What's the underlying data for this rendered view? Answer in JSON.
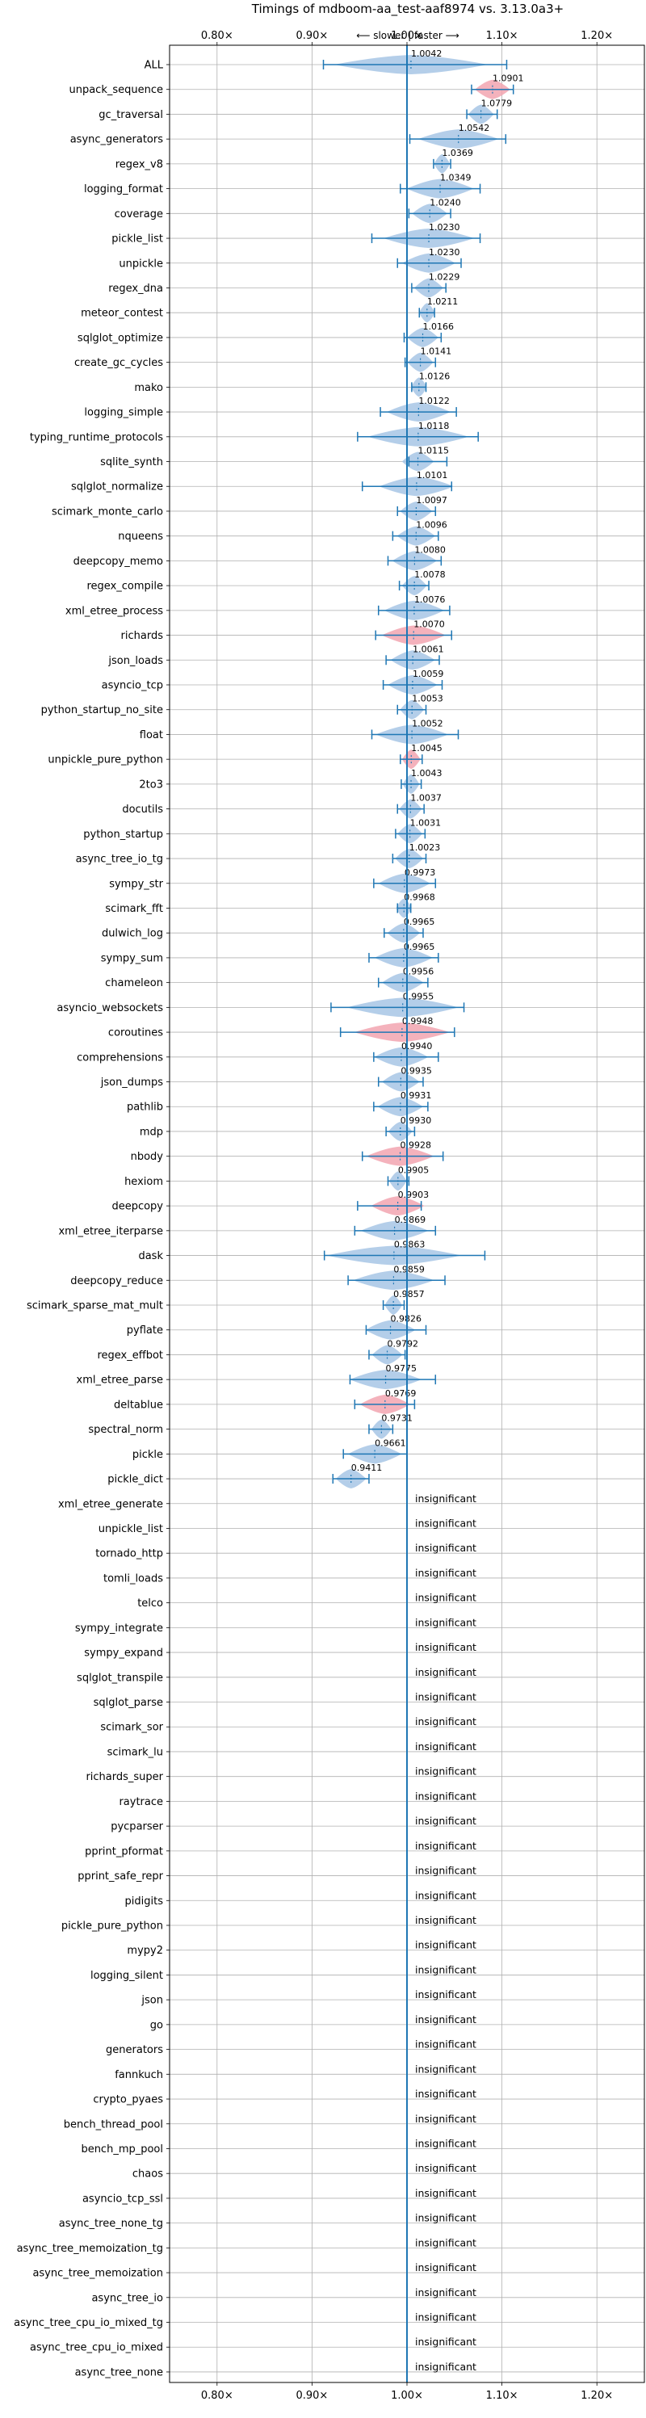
{
  "chart_data": {
    "type": "violin",
    "title": "Timings of mdboom-aa_test-aaf8974 vs. 3.13.0a3+",
    "direction_label": "⟵ slower | faster ⟶",
    "x_ticks": [
      "0.80×",
      "0.90×",
      "1.00×",
      "1.10×",
      "1.20×"
    ],
    "x_tick_values": [
      0.8,
      0.9,
      1.0,
      1.1,
      1.2
    ],
    "xlim": [
      0.75,
      1.25
    ],
    "reference_line": 1.0,
    "grid": true,
    "colors": {
      "faster": "#a7c6e5",
      "slower": "#f2a5b0",
      "whisker": "#1f77b4",
      "reference": "#1f77b4",
      "grid": "#b0b0b0"
    },
    "insignificant_label": "insignificant",
    "benchmarks": [
      {
        "name": "ALL",
        "value": 1.0042,
        "label": "1.0042",
        "lo": 0.912,
        "hi": 1.105,
        "color": "faster"
      },
      {
        "name": "unpack_sequence",
        "value": 1.0901,
        "label": "1.0901",
        "lo": 1.068,
        "hi": 1.112,
        "color": "slower"
      },
      {
        "name": "gc_traversal",
        "value": 1.0779,
        "label": "1.0779",
        "lo": 1.063,
        "hi": 1.095,
        "color": "faster"
      },
      {
        "name": "async_generators",
        "value": 1.0542,
        "label": "1.0542",
        "lo": 1.003,
        "hi": 1.104,
        "color": "faster"
      },
      {
        "name": "regex_v8",
        "value": 1.0369,
        "label": "1.0369",
        "lo": 1.028,
        "hi": 1.046,
        "color": "faster"
      },
      {
        "name": "logging_format",
        "value": 1.0349,
        "label": "1.0349",
        "lo": 0.993,
        "hi": 1.077,
        "color": "faster"
      },
      {
        "name": "coverage",
        "value": 1.024,
        "label": "1.0240",
        "lo": 1.002,
        "hi": 1.046,
        "color": "faster"
      },
      {
        "name": "pickle_list",
        "value": 1.023,
        "label": "1.0230",
        "lo": 0.963,
        "hi": 1.077,
        "color": "faster"
      },
      {
        "name": "unpickle",
        "value": 1.023,
        "label": "1.0230",
        "lo": 0.99,
        "hi": 1.057,
        "color": "faster"
      },
      {
        "name": "regex_dna",
        "value": 1.0229,
        "label": "1.0229",
        "lo": 1.005,
        "hi": 1.041,
        "color": "faster"
      },
      {
        "name": "meteor_contest",
        "value": 1.0211,
        "label": "1.0211",
        "lo": 1.013,
        "hi": 1.029,
        "color": "faster"
      },
      {
        "name": "sqlglot_optimize",
        "value": 1.0166,
        "label": "1.0166",
        "lo": 0.997,
        "hi": 1.036,
        "color": "faster"
      },
      {
        "name": "create_gc_cycles",
        "value": 1.0141,
        "label": "1.0141",
        "lo": 0.998,
        "hi": 1.03,
        "color": "faster"
      },
      {
        "name": "mako",
        "value": 1.0126,
        "label": "1.0126",
        "lo": 1.005,
        "hi": 1.02,
        "color": "faster"
      },
      {
        "name": "logging_simple",
        "value": 1.0122,
        "label": "1.0122",
        "lo": 0.972,
        "hi": 1.052,
        "color": "faster"
      },
      {
        "name": "typing_runtime_protocols",
        "value": 1.0118,
        "label": "1.0118",
        "lo": 0.948,
        "hi": 1.075,
        "color": "faster"
      },
      {
        "name": "sqlite_synth",
        "value": 1.0115,
        "label": "1.0115",
        "lo": 1.002,
        "hi": 1.042,
        "color": "faster"
      },
      {
        "name": "sqlglot_normalize",
        "value": 1.0101,
        "label": "1.0101",
        "lo": 0.953,
        "hi": 1.047,
        "color": "faster"
      },
      {
        "name": "scimark_monte_carlo",
        "value": 1.0097,
        "label": "1.0097",
        "lo": 0.99,
        "hi": 1.03,
        "color": "faster"
      },
      {
        "name": "nqueens",
        "value": 1.0096,
        "label": "1.0096",
        "lo": 0.985,
        "hi": 1.033,
        "color": "faster"
      },
      {
        "name": "deepcopy_memo",
        "value": 1.008,
        "label": "1.0080",
        "lo": 0.98,
        "hi": 1.036,
        "color": "faster"
      },
      {
        "name": "regex_compile",
        "value": 1.0078,
        "label": "1.0078",
        "lo": 0.992,
        "hi": 1.023,
        "color": "faster"
      },
      {
        "name": "xml_etree_process",
        "value": 1.0076,
        "label": "1.0076",
        "lo": 0.97,
        "hi": 1.045,
        "color": "faster"
      },
      {
        "name": "richards",
        "value": 1.007,
        "label": "1.0070",
        "lo": 0.967,
        "hi": 1.047,
        "color": "slower"
      },
      {
        "name": "json_loads",
        "value": 1.0061,
        "label": "1.0061",
        "lo": 0.978,
        "hi": 1.034,
        "color": "faster"
      },
      {
        "name": "asyncio_tcp",
        "value": 1.0059,
        "label": "1.0059",
        "lo": 0.975,
        "hi": 1.037,
        "color": "faster"
      },
      {
        "name": "python_startup_no_site",
        "value": 1.0053,
        "label": "1.0053",
        "lo": 0.99,
        "hi": 1.02,
        "color": "faster"
      },
      {
        "name": "float",
        "value": 1.0052,
        "label": "1.0052",
        "lo": 0.963,
        "hi": 1.054,
        "color": "faster"
      },
      {
        "name": "unpickle_pure_python",
        "value": 1.0045,
        "label": "1.0045",
        "lo": 0.993,
        "hi": 1.016,
        "color": "slower"
      },
      {
        "name": "2to3",
        "value": 1.0043,
        "label": "1.0043",
        "lo": 0.994,
        "hi": 1.015,
        "color": "faster"
      },
      {
        "name": "docutils",
        "value": 1.0037,
        "label": "1.0037",
        "lo": 0.99,
        "hi": 1.018,
        "color": "faster"
      },
      {
        "name": "python_startup",
        "value": 1.0031,
        "label": "1.0031",
        "lo": 0.988,
        "hi": 1.019,
        "color": "faster"
      },
      {
        "name": "async_tree_io_tg",
        "value": 1.0023,
        "label": "1.0023",
        "lo": 0.985,
        "hi": 1.02,
        "color": "faster"
      },
      {
        "name": "sympy_str",
        "value": 0.9973,
        "label": "0.9973",
        "lo": 0.965,
        "hi": 1.03,
        "color": "faster"
      },
      {
        "name": "scimark_fft",
        "value": 0.9968,
        "label": "0.9968",
        "lo": 0.99,
        "hi": 1.004,
        "color": "faster"
      },
      {
        "name": "dulwich_log",
        "value": 0.9965,
        "label": "0.9965",
        "lo": 0.976,
        "hi": 1.017,
        "color": "faster"
      },
      {
        "name": "sympy_sum",
        "value": 0.9965,
        "label": "0.9965",
        "lo": 0.96,
        "hi": 1.033,
        "color": "faster"
      },
      {
        "name": "chameleon",
        "value": 0.9956,
        "label": "0.9956",
        "lo": 0.97,
        "hi": 1.022,
        "color": "faster"
      },
      {
        "name": "asyncio_websockets",
        "value": 0.9955,
        "label": "0.9955",
        "lo": 0.92,
        "hi": 1.06,
        "color": "faster"
      },
      {
        "name": "coroutines",
        "value": 0.9948,
        "label": "0.9948",
        "lo": 0.93,
        "hi": 1.05,
        "color": "slower"
      },
      {
        "name": "comprehensions",
        "value": 0.994,
        "label": "0.9940",
        "lo": 0.965,
        "hi": 1.033,
        "color": "faster"
      },
      {
        "name": "json_dumps",
        "value": 0.9935,
        "label": "0.9935",
        "lo": 0.97,
        "hi": 1.017,
        "color": "faster"
      },
      {
        "name": "pathlib",
        "value": 0.9931,
        "label": "0.9931",
        "lo": 0.965,
        "hi": 1.022,
        "color": "faster"
      },
      {
        "name": "mdp",
        "value": 0.993,
        "label": "0.9930",
        "lo": 0.978,
        "hi": 1.008,
        "color": "faster"
      },
      {
        "name": "nbody",
        "value": 0.9928,
        "label": "0.9928",
        "lo": 0.953,
        "hi": 1.038,
        "color": "slower"
      },
      {
        "name": "hexiom",
        "value": 0.9905,
        "label": "0.9905",
        "lo": 0.98,
        "hi": 1.002,
        "color": "faster"
      },
      {
        "name": "deepcopy",
        "value": 0.9903,
        "label": "0.9903",
        "lo": 0.948,
        "hi": 1.015,
        "color": "slower"
      },
      {
        "name": "xml_etree_iterparse",
        "value": 0.9869,
        "label": "0.9869",
        "lo": 0.945,
        "hi": 1.03,
        "color": "faster"
      },
      {
        "name": "dask",
        "value": 0.9863,
        "label": "0.9863",
        "lo": 0.913,
        "hi": 1.082,
        "color": "faster"
      },
      {
        "name": "deepcopy_reduce",
        "value": 0.9859,
        "label": "0.9859",
        "lo": 0.938,
        "hi": 1.04,
        "color": "faster"
      },
      {
        "name": "scimark_sparse_mat_mult",
        "value": 0.9857,
        "label": "0.9857",
        "lo": 0.975,
        "hi": 0.997,
        "color": "faster"
      },
      {
        "name": "pyflate",
        "value": 0.9826,
        "label": "0.9826",
        "lo": 0.957,
        "hi": 1.02,
        "color": "faster"
      },
      {
        "name": "regex_effbot",
        "value": 0.9792,
        "label": "0.9792",
        "lo": 0.96,
        "hi": 0.998,
        "color": "faster"
      },
      {
        "name": "xml_etree_parse",
        "value": 0.9775,
        "label": "0.9775",
        "lo": 0.94,
        "hi": 1.03,
        "color": "faster"
      },
      {
        "name": "deltablue",
        "value": 0.9769,
        "label": "0.9769",
        "lo": 0.945,
        "hi": 1.008,
        "color": "slower"
      },
      {
        "name": "spectral_norm",
        "value": 0.9731,
        "label": "0.9731",
        "lo": 0.96,
        "hi": 0.985,
        "color": "faster"
      },
      {
        "name": "pickle",
        "value": 0.9661,
        "label": "0.9661",
        "lo": 0.933,
        "hi": 1.0,
        "color": "faster"
      },
      {
        "name": "pickle_dict",
        "value": 0.9411,
        "label": "0.9411",
        "lo": 0.922,
        "hi": 0.96,
        "color": "faster"
      },
      {
        "name": "xml_etree_generate",
        "insignificant": true
      },
      {
        "name": "unpickle_list",
        "insignificant": true
      },
      {
        "name": "tornado_http",
        "insignificant": true
      },
      {
        "name": "tomli_loads",
        "insignificant": true
      },
      {
        "name": "telco",
        "insignificant": true
      },
      {
        "name": "sympy_integrate",
        "insignificant": true
      },
      {
        "name": "sympy_expand",
        "insignificant": true
      },
      {
        "name": "sqlglot_transpile",
        "insignificant": true
      },
      {
        "name": "sqlglot_parse",
        "insignificant": true
      },
      {
        "name": "scimark_sor",
        "insignificant": true
      },
      {
        "name": "scimark_lu",
        "insignificant": true
      },
      {
        "name": "richards_super",
        "insignificant": true
      },
      {
        "name": "raytrace",
        "insignificant": true
      },
      {
        "name": "pycparser",
        "insignificant": true
      },
      {
        "name": "pprint_pformat",
        "insignificant": true
      },
      {
        "name": "pprint_safe_repr",
        "insignificant": true
      },
      {
        "name": "pidigits",
        "insignificant": true
      },
      {
        "name": "pickle_pure_python",
        "insignificant": true
      },
      {
        "name": "mypy2",
        "insignificant": true
      },
      {
        "name": "logging_silent",
        "insignificant": true
      },
      {
        "name": "json",
        "insignificant": true
      },
      {
        "name": "go",
        "insignificant": true
      },
      {
        "name": "generators",
        "insignificant": true
      },
      {
        "name": "fannkuch",
        "insignificant": true
      },
      {
        "name": "crypto_pyaes",
        "insignificant": true
      },
      {
        "name": "bench_thread_pool",
        "insignificant": true
      },
      {
        "name": "bench_mp_pool",
        "insignificant": true
      },
      {
        "name": "chaos",
        "insignificant": true
      },
      {
        "name": "asyncio_tcp_ssl",
        "insignificant": true
      },
      {
        "name": "async_tree_none_tg",
        "insignificant": true
      },
      {
        "name": "async_tree_memoization_tg",
        "insignificant": true
      },
      {
        "name": "async_tree_memoization",
        "insignificant": true
      },
      {
        "name": "async_tree_io",
        "insignificant": true
      },
      {
        "name": "async_tree_cpu_io_mixed_tg",
        "insignificant": true
      },
      {
        "name": "async_tree_cpu_io_mixed",
        "insignificant": true
      },
      {
        "name": "async_tree_none",
        "insignificant": true
      }
    ]
  }
}
